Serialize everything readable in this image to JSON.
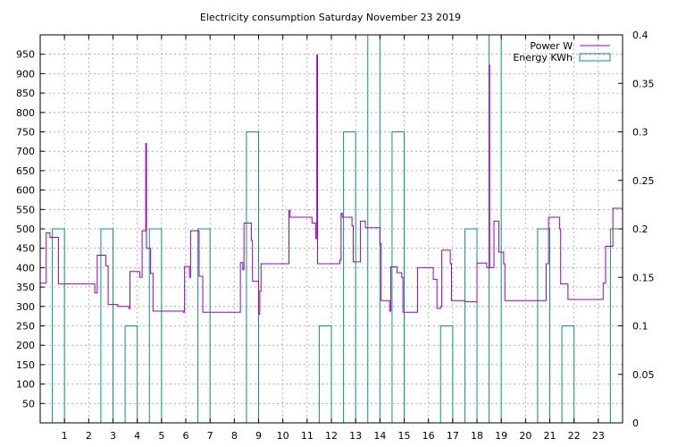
{
  "chart_data": {
    "type": "line",
    "title": "Electricity consumption Saturday November 23 2019",
    "x_ticks": [
      "1",
      "2",
      "3",
      "4",
      "5",
      "6",
      "7",
      "8",
      "9",
      "10",
      "11",
      "12",
      "13",
      "14",
      "15",
      "16",
      "17",
      "18",
      "19",
      "20",
      "21",
      "22",
      "23"
    ],
    "x_range": [
      0,
      24
    ],
    "y_ticks": [
      "50",
      "100",
      "150",
      "200",
      "250",
      "300",
      "350",
      "400",
      "450",
      "500",
      "550",
      "600",
      "650",
      "700",
      "750",
      "800",
      "850",
      "900",
      "950"
    ],
    "ylim": [
      0,
      1000
    ],
    "y2_ticks": [
      "0",
      "0.05",
      "0.1",
      "0.15",
      "0.2",
      "0.25",
      "0.3",
      "0.35",
      "0.4"
    ],
    "y2lim": [
      0,
      0.4
    ],
    "grid": true,
    "legend_position": "top-right",
    "colors": {
      "power": "#9400d3",
      "energy": "#009e73"
    },
    "series": [
      {
        "name": "Power W",
        "axis": "left",
        "style": "line",
        "points": [
          [
            0.0,
            360
          ],
          [
            0.25,
            360
          ],
          [
            0.25,
            490
          ],
          [
            0.4,
            490
          ],
          [
            0.4,
            478
          ],
          [
            0.75,
            478
          ],
          [
            0.75,
            358
          ],
          [
            2.25,
            358
          ],
          [
            2.25,
            335
          ],
          [
            2.35,
            335
          ],
          [
            2.35,
            432
          ],
          [
            2.7,
            432
          ],
          [
            2.7,
            405
          ],
          [
            2.8,
            405
          ],
          [
            2.8,
            305
          ],
          [
            3.2,
            305
          ],
          [
            3.2,
            300
          ],
          [
            3.65,
            300
          ],
          [
            3.65,
            295
          ],
          [
            3.7,
            295
          ],
          [
            3.7,
            390
          ],
          [
            4.1,
            390
          ],
          [
            4.1,
            375
          ],
          [
            4.2,
            375
          ],
          [
            4.2,
            495
          ],
          [
            4.35,
            495
          ],
          [
            4.35,
            720
          ],
          [
            4.38,
            720
          ],
          [
            4.38,
            450
          ],
          [
            4.55,
            450
          ],
          [
            4.55,
            385
          ],
          [
            4.65,
            385
          ],
          [
            4.65,
            288
          ],
          [
            5.9,
            288
          ],
          [
            5.9,
            285
          ],
          [
            5.95,
            285
          ],
          [
            5.95,
            403
          ],
          [
            6.15,
            403
          ],
          [
            6.15,
            375
          ],
          [
            6.2,
            375
          ],
          [
            6.2,
            495
          ],
          [
            6.55,
            495
          ],
          [
            6.55,
            378
          ],
          [
            6.7,
            378
          ],
          [
            6.7,
            285
          ],
          [
            8.25,
            285
          ],
          [
            8.25,
            413
          ],
          [
            8.35,
            413
          ],
          [
            8.35,
            395
          ],
          [
            8.4,
            395
          ],
          [
            8.4,
            515
          ],
          [
            8.7,
            515
          ],
          [
            8.7,
            470
          ],
          [
            8.75,
            470
          ],
          [
            8.75,
            365
          ],
          [
            9.0,
            365
          ],
          [
            9.0,
            280
          ],
          [
            9.05,
            280
          ],
          [
            9.05,
            340
          ],
          [
            9.1,
            340
          ],
          [
            9.1,
            410
          ],
          [
            10.25,
            410
          ],
          [
            10.25,
            548
          ],
          [
            10.3,
            548
          ],
          [
            10.3,
            530
          ],
          [
            11.2,
            530
          ],
          [
            11.2,
            515
          ],
          [
            11.35,
            515
          ],
          [
            11.35,
            475
          ],
          [
            11.4,
            475
          ],
          [
            11.4,
            948
          ],
          [
            11.43,
            948
          ],
          [
            11.43,
            410
          ],
          [
            12.35,
            410
          ],
          [
            12.35,
            420
          ],
          [
            12.4,
            420
          ],
          [
            12.4,
            540
          ],
          [
            12.45,
            540
          ],
          [
            12.45,
            530
          ],
          [
            12.85,
            530
          ],
          [
            12.85,
            508
          ],
          [
            12.9,
            508
          ],
          [
            12.9,
            415
          ],
          [
            13.2,
            415
          ],
          [
            13.2,
            520
          ],
          [
            13.4,
            520
          ],
          [
            13.4,
            503
          ],
          [
            14.0,
            503
          ],
          [
            14.0,
            462
          ],
          [
            14.05,
            462
          ],
          [
            14.05,
            315
          ],
          [
            14.4,
            315
          ],
          [
            14.4,
            288
          ],
          [
            14.45,
            288
          ],
          [
            14.45,
            402
          ],
          [
            14.7,
            402
          ],
          [
            14.7,
            387
          ],
          [
            14.9,
            387
          ],
          [
            14.9,
            375
          ],
          [
            14.95,
            375
          ],
          [
            14.95,
            285
          ],
          [
            15.55,
            285
          ],
          [
            15.55,
            400
          ],
          [
            16.2,
            400
          ],
          [
            16.2,
            370
          ],
          [
            16.35,
            370
          ],
          [
            16.35,
            295
          ],
          [
            16.5,
            295
          ],
          [
            16.5,
            300
          ],
          [
            16.55,
            300
          ],
          [
            16.55,
            445
          ],
          [
            16.9,
            445
          ],
          [
            16.9,
            410
          ],
          [
            16.95,
            410
          ],
          [
            16.95,
            315
          ],
          [
            17.5,
            315
          ],
          [
            17.5,
            312
          ],
          [
            18.0,
            312
          ],
          [
            18.0,
            412
          ],
          [
            18.4,
            412
          ],
          [
            18.4,
            400
          ],
          [
            18.5,
            400
          ],
          [
            18.5,
            922
          ],
          [
            18.52,
            922
          ],
          [
            18.52,
            400
          ],
          [
            18.7,
            400
          ],
          [
            18.7,
            520
          ],
          [
            18.9,
            520
          ],
          [
            18.9,
            440
          ],
          [
            19.1,
            440
          ],
          [
            19.1,
            410
          ],
          [
            19.15,
            410
          ],
          [
            19.15,
            315
          ],
          [
            20.85,
            315
          ],
          [
            20.85,
            410
          ],
          [
            20.95,
            410
          ],
          [
            20.95,
            530
          ],
          [
            21.4,
            530
          ],
          [
            21.4,
            500
          ],
          [
            21.45,
            500
          ],
          [
            21.45,
            358
          ],
          [
            21.75,
            358
          ],
          [
            21.75,
            318
          ],
          [
            23.2,
            318
          ],
          [
            23.2,
            360
          ],
          [
            23.3,
            360
          ],
          [
            23.3,
            455
          ],
          [
            23.6,
            455
          ],
          [
            23.6,
            553
          ],
          [
            24.0,
            553
          ]
        ]
      },
      {
        "name": "Energy KWh",
        "axis": "right",
        "style": "step-boxes",
        "bars": [
          [
            0,
            0.2
          ],
          [
            1,
            0
          ],
          [
            2,
            0.2
          ],
          [
            3,
            0.1
          ],
          [
            4,
            0.2
          ],
          [
            5,
            0
          ],
          [
            6,
            0.2
          ],
          [
            7,
            0
          ],
          [
            8,
            0.3
          ],
          [
            9,
            0
          ],
          [
            10,
            0
          ],
          [
            11,
            0.1
          ],
          [
            12,
            0.3
          ],
          [
            13,
            0.4
          ],
          [
            14,
            0.3
          ],
          [
            15,
            0
          ],
          [
            16,
            0.1
          ],
          [
            17,
            0.2
          ],
          [
            18,
            0.4
          ],
          [
            19,
            0
          ],
          [
            20,
            0.2
          ],
          [
            21,
            0.1
          ],
          [
            22,
            0
          ],
          [
            23,
            0.2
          ]
        ]
      }
    ]
  }
}
